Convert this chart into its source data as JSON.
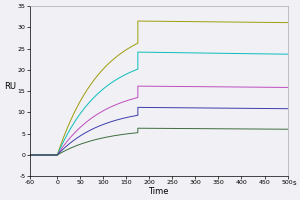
{
  "title": "",
  "xlabel": "Time",
  "ylabel": "RU",
  "xlabel_suffix": "s",
  "xlim": [
    -60,
    500
  ],
  "ylim": [
    -5,
    35
  ],
  "yticks": [
    -5,
    0,
    5,
    10,
    15,
    20,
    25,
    30,
    35
  ],
  "xticks": [
    -60,
    0,
    50,
    100,
    150,
    200,
    250,
    300,
    350,
    400,
    450,
    500
  ],
  "xticklabels": [
    "-60",
    "0",
    "50",
    "100",
    "150",
    "200",
    "250",
    "300",
    "350",
    "400",
    "450",
    "500"
  ],
  "background_color": "#f0f0f5",
  "plot_bg_color": "#f0f0f5",
  "curves": [
    {
      "color": "#999900",
      "association_end": 175,
      "peak": 31.5,
      "plateau": 29.5,
      "dissociation_end": 500,
      "tau_assoc_factor": 1.8,
      "tau_dissoc_factor": 5.0
    },
    {
      "color": "#00BBBB",
      "association_end": 175,
      "peak": 24.2,
      "plateau": 21.5,
      "dissociation_end": 500,
      "tau_assoc_factor": 1.8,
      "tau_dissoc_factor": 5.0
    },
    {
      "color": "#BB44BB",
      "association_end": 175,
      "peak": 16.2,
      "plateau": 14.5,
      "dissociation_end": 500,
      "tau_assoc_factor": 1.8,
      "tau_dissoc_factor": 5.0
    },
    {
      "color": "#3333AA",
      "association_end": 175,
      "peak": 11.2,
      "plateau": 9.5,
      "dissociation_end": 500,
      "tau_assoc_factor": 1.8,
      "tau_dissoc_factor": 5.0
    },
    {
      "color": "#336633",
      "association_end": 175,
      "peak": 6.3,
      "plateau": 5.0,
      "dissociation_end": 500,
      "tau_assoc_factor": 1.8,
      "tau_dissoc_factor": 5.0
    }
  ]
}
